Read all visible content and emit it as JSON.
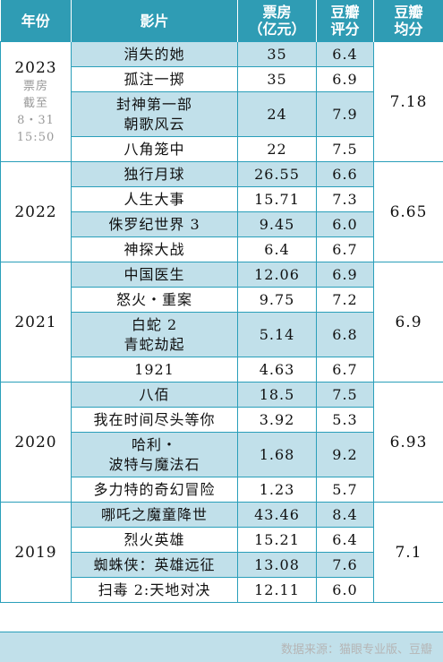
{
  "headers": {
    "year": "年份",
    "film": "影片",
    "box_office": [
      "票房",
      "（亿元）"
    ],
    "score": [
      "豆瓣",
      "评分"
    ],
    "avg": [
      "豆瓣",
      "均分"
    ]
  },
  "groups": [
    {
      "year": "2023",
      "note": [
        "票房",
        "截至",
        "8・31",
        "15:50"
      ],
      "avg": "7.18",
      "rows": [
        {
          "film": [
            "消失的她"
          ],
          "box": "35",
          "score": "6.4"
        },
        {
          "film": [
            "孤注一掷"
          ],
          "box": "35",
          "score": "6.9"
        },
        {
          "film": [
            "封神第一部",
            "朝歌风云"
          ],
          "box": "24",
          "score": "7.9"
        },
        {
          "film": [
            "八角笼中"
          ],
          "box": "22",
          "score": "7.5"
        }
      ]
    },
    {
      "year": "2022",
      "note": [],
      "avg": "6.65",
      "rows": [
        {
          "film": [
            "独行月球"
          ],
          "box": "26.55",
          "score": "6.6"
        },
        {
          "film": [
            "人生大事"
          ],
          "box": "15.71",
          "score": "7.3"
        },
        {
          "film": [
            "侏罗纪世界 3"
          ],
          "box": "9.45",
          "score": "6.0"
        },
        {
          "film": [
            "神探大战"
          ],
          "box": "6.4",
          "score": "6.7"
        }
      ]
    },
    {
      "year": "2021",
      "note": [],
      "avg": "6.9",
      "rows": [
        {
          "film": [
            "中国医生"
          ],
          "box": "12.06",
          "score": "6.9"
        },
        {
          "film": [
            "怒火・重案"
          ],
          "box": "9.75",
          "score": "7.2"
        },
        {
          "film": [
            "白蛇 2",
            "青蛇劫起"
          ],
          "box": "5.14",
          "score": "6.8"
        },
        {
          "film": [
            "1921"
          ],
          "box": "4.63",
          "score": "6.7"
        }
      ]
    },
    {
      "year": "2020",
      "note": [],
      "avg": "6.93",
      "rows": [
        {
          "film": [
            "八佰"
          ],
          "box": "18.5",
          "score": "7.5"
        },
        {
          "film": [
            "我在时间尽头等你"
          ],
          "box": "3.92",
          "score": "5.3"
        },
        {
          "film": [
            "哈利・",
            "波特与魔法石"
          ],
          "box": "1.68",
          "score": "9.2"
        },
        {
          "film": [
            "多力特的奇幻冒险"
          ],
          "box": "1.23",
          "score": "5.7"
        }
      ]
    },
    {
      "year": "2019",
      "note": [],
      "avg": "7.1",
      "rows": [
        {
          "film": [
            "哪吒之魔童降世"
          ],
          "box": "43.46",
          "score": "8.4"
        },
        {
          "film": [
            "烈火英雄"
          ],
          "box": "15.21",
          "score": "6.4"
        },
        {
          "film": [
            "蜘蛛侠：英雄远征"
          ],
          "box": "13.08",
          "score": "7.6"
        },
        {
          "film": [
            "扫毒 2:天地对决"
          ],
          "box": "12.11",
          "score": "6.0"
        }
      ]
    }
  ],
  "footer": "数据来源：猫眼专业版、豆瓣",
  "colors": {
    "header": "#2f9cb4",
    "row_tint": "#c1e0ea",
    "border": "#2a9fba"
  }
}
